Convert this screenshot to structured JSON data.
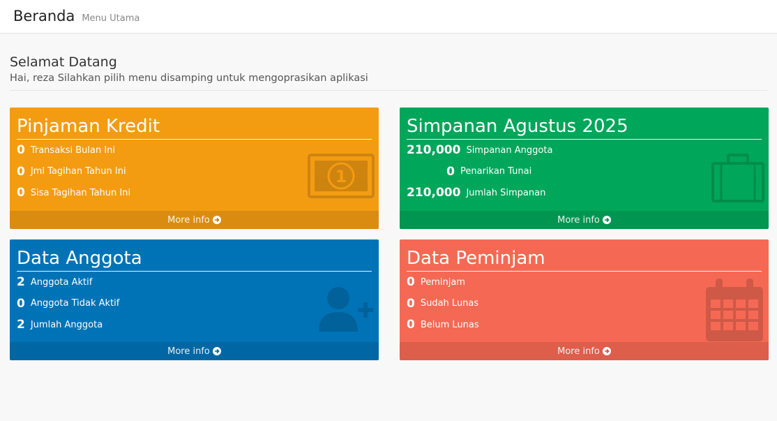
{
  "header": {
    "title": "Beranda",
    "subtitle": "Menu Utama"
  },
  "welcome": {
    "heading": "Selamat Datang",
    "message": "Hai, reza Silahkan pilih menu disamping untuk mengoprasikan aplikasi"
  },
  "cards": {
    "pinjaman": {
      "title": "Pinjaman Kredit",
      "color": "#f39c12",
      "icon": "money-bill-icon",
      "rows": [
        {
          "value": "0",
          "label": "Transaksi Bulan Ini"
        },
        {
          "value": "0",
          "label": "Jml Tagihan Tahun Ini"
        },
        {
          "value": "0",
          "label": "Sisa Tagihan Tahun Ini"
        }
      ],
      "more": "More info"
    },
    "simpanan": {
      "title": "Simpanan Agustus 2025",
      "color": "#00a65a",
      "icon": "briefcase-icon",
      "rows": [
        {
          "value": "210,000",
          "label": "Simpanan Anggota"
        },
        {
          "value": "0",
          "label": "Penarikan Tunai"
        },
        {
          "value": "210,000",
          "label": "Jumlah Simpanan"
        }
      ],
      "more": "More info"
    },
    "anggota": {
      "title": "Data Anggota",
      "color": "#0073b7",
      "icon": "user-plus-icon",
      "rows": [
        {
          "value": "2",
          "label": "Anggota Aktif"
        },
        {
          "value": "0",
          "label": "Anggota Tidak Aktif"
        },
        {
          "value": "2",
          "label": "Jumlah Anggota"
        }
      ],
      "more": "More info"
    },
    "peminjam": {
      "title": "Data Peminjam",
      "color": "#f56954",
      "icon": "calendar-icon",
      "rows": [
        {
          "value": "0",
          "label": "Peminjam"
        },
        {
          "value": "0",
          "label": "Sudah Lunas"
        },
        {
          "value": "0",
          "label": "Belum Lunas"
        }
      ],
      "more": "More info"
    }
  }
}
